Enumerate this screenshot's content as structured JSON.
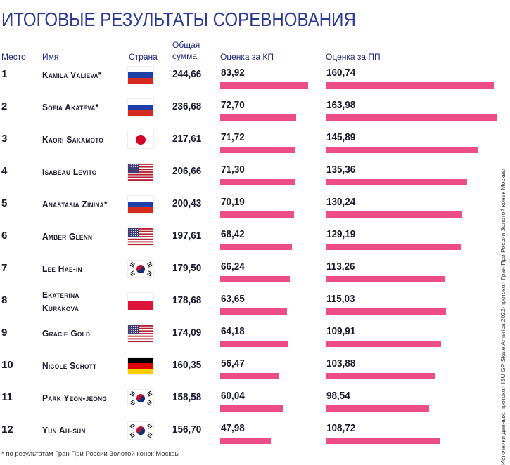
{
  "title": "ИТОГОВЫЕ РЕЗУЛЬТАТЫ СОРЕВНОВАНИЯ",
  "headers": {
    "place": "Место",
    "name": "Имя",
    "country": "Страна",
    "total": "Общая сумма",
    "sp": "Оценка за КП",
    "fs": "Оценка за ПП"
  },
  "footnote": "* по результатам Гран При России Золотой конек Москвы",
  "source": "Источники данных: протокол ISU GP Skate America 2022-протокол Гран При России Золотой конек Москвы",
  "bar_color": "#ea4d87",
  "chart_data": {
    "type": "bar",
    "series": [
      {
        "name": "Оценка за КП",
        "key": "sp"
      },
      {
        "name": "Оценка за ПП",
        "key": "fs"
      }
    ],
    "rows": [
      {
        "place": "1",
        "name": "Kamila Valieva*",
        "country": "russia-flag-icon",
        "total": "244,66",
        "sp": 83.92,
        "sp_label": "83,92",
        "fs": 160.74,
        "fs_label": "160,74"
      },
      {
        "place": "2",
        "name": "Sofia Akateva*",
        "country": "russia-flag-icon",
        "total": "236,68",
        "sp": 72.7,
        "sp_label": "72,70",
        "fs": 163.98,
        "fs_label": "163,98"
      },
      {
        "place": "3",
        "name": "Kaori Sakamoto",
        "country": "japan-flag-icon",
        "total": "217,61",
        "sp": 71.72,
        "sp_label": "71,72",
        "fs": 145.89,
        "fs_label": "145,89"
      },
      {
        "place": "4",
        "name": "Isabeau Levito",
        "country": "usa-flag-icon",
        "total": "206,66",
        "sp": 71.3,
        "sp_label": "71,30",
        "fs": 135.36,
        "fs_label": "135,36"
      },
      {
        "place": "5",
        "name": "Anastasia Zinina*",
        "country": "russia-flag-icon",
        "total": "200,43",
        "sp": 70.19,
        "sp_label": "70,19",
        "fs": 130.24,
        "fs_label": "130,24"
      },
      {
        "place": "6",
        "name": "Amber Glenn",
        "country": "usa-flag-icon",
        "total": "197,61",
        "sp": 68.42,
        "sp_label": "68,42",
        "fs": 129.19,
        "fs_label": "129,19"
      },
      {
        "place": "7",
        "name": "Lee Hae-in",
        "country": "korea-flag-icon",
        "total": "179,50",
        "sp": 66.24,
        "sp_label": "66,24",
        "fs": 113.26,
        "fs_label": "113,26"
      },
      {
        "place": "8",
        "name": "Ekaterina Kurakova",
        "country": "poland-flag-icon",
        "total": "178,68",
        "sp": 63.65,
        "sp_label": "63,65",
        "fs": 115.03,
        "fs_label": "115,03"
      },
      {
        "place": "9",
        "name": "Gracie Gold",
        "country": "usa-flag-icon",
        "total": "174,09",
        "sp": 64.18,
        "sp_label": "64,18",
        "fs": 109.91,
        "fs_label": "109,91"
      },
      {
        "place": "10",
        "name": "Nicole Schott",
        "country": "germany-flag-icon",
        "total": "160,35",
        "sp": 56.47,
        "sp_label": "56,47",
        "fs": 103.88,
        "fs_label": "103,88"
      },
      {
        "place": "11",
        "name": "Park Yeon-jeong",
        "country": "korea-flag-icon",
        "total": "158,58",
        "sp": 60.04,
        "sp_label": "60,04",
        "fs": 98.54,
        "fs_label": "98,54"
      },
      {
        "place": "12",
        "name": "Yun Ah-sun",
        "country": "korea-flag-icon",
        "total": "156,70",
        "sp": 47.98,
        "sp_label": "47,98",
        "fs": 108.72,
        "fs_label": "108,72"
      }
    ]
  }
}
